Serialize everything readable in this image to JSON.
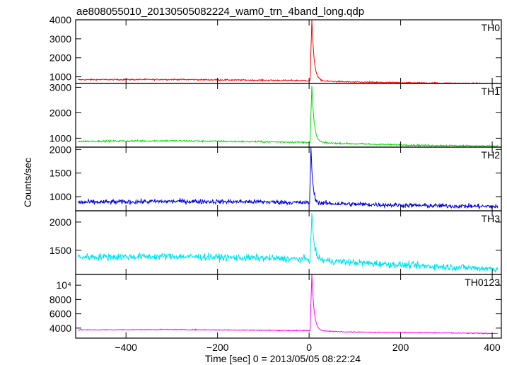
{
  "chart_data": {
    "type": "line",
    "title": "ae808055010_20130505082224_wam0_trn_4band_long.qdp",
    "xlabel": "Time [sec] 0 = 2013/05/05 08:22:24",
    "ylabel": "Counts/sec",
    "xlim": [
      -510,
      420
    ],
    "xticks": [
      -400,
      -200,
      0,
      200,
      400
    ],
    "xtick_labels": [
      "−400",
      "−200",
      "0",
      "200",
      "400"
    ],
    "grid": false,
    "panels": [
      {
        "name": "TH0",
        "color": "#ff0000",
        "ylim": [
          650,
          4000
        ],
        "yticks": [
          1000,
          2000,
          3000,
          4000
        ],
        "ytick_labels": [
          "1000",
          "2000",
          "3000",
          "4000"
        ],
        "baseline": [
          [
            -500,
            850
          ],
          [
            -300,
            860
          ],
          [
            -100,
            820
          ],
          [
            -5,
            800
          ],
          [
            100,
            720
          ],
          [
            250,
            680
          ],
          [
            410,
            640
          ]
        ],
        "noise": 25,
        "burst": {
          "t0": 3,
          "t_peak": 6,
          "peak": 4000,
          "decay": 5
        }
      },
      {
        "name": "TH1",
        "color": "#00dd00",
        "ylim": [
          650,
          3150
        ],
        "yticks": [
          1000,
          2000,
          3000
        ],
        "ytick_labels": [
          "1000",
          "2000",
          "3000"
        ],
        "baseline": [
          [
            -500,
            880
          ],
          [
            -300,
            900
          ],
          [
            -100,
            860
          ],
          [
            -5,
            840
          ],
          [
            100,
            780
          ],
          [
            250,
            720
          ],
          [
            410,
            690
          ]
        ],
        "noise": 22,
        "burst": {
          "t0": 3,
          "t_peak": 6,
          "peak": 3050,
          "decay": 5
        }
      },
      {
        "name": "TH2",
        "color": "#0000dd",
        "ylim": [
          700,
          2050
        ],
        "yticks": [
          1000,
          1500,
          2000
        ],
        "ytick_labels": [
          "1000",
          "1500",
          "2000"
        ],
        "baseline": [
          [
            -500,
            880
          ],
          [
            -300,
            900
          ],
          [
            -100,
            890
          ],
          [
            -5,
            870
          ],
          [
            100,
            840
          ],
          [
            250,
            810
          ],
          [
            410,
            790
          ]
        ],
        "noise": 35,
        "burst": {
          "t0": 2,
          "t_peak": 4,
          "peak": 2050,
          "decay": 4
        }
      },
      {
        "name": "TH3",
        "color": "#00e5ee",
        "ylim": [
          1070,
          2200
        ],
        "yticks": [
          1500,
          2000
        ],
        "ytick_labels": [
          "1500",
          "2000"
        ],
        "baseline": [
          [
            -500,
            1380
          ],
          [
            -300,
            1390
          ],
          [
            -100,
            1360
          ],
          [
            -5,
            1340
          ],
          [
            100,
            1280
          ],
          [
            250,
            1220
          ],
          [
            410,
            1170
          ]
        ],
        "noise": 45,
        "burst": {
          "t0": 3,
          "t_peak": 6,
          "peak": 2150,
          "decay": 5
        }
      },
      {
        "name": "TH0123",
        "color": "#ff00ff",
        "ylim": [
          2600,
          11500
        ],
        "yticks": [
          4000,
          6000,
          8000,
          10000
        ],
        "ytick_labels": [
          "4000",
          "6000",
          "8000",
          "10⁴"
        ],
        "baseline": [
          [
            -500,
            3750
          ],
          [
            -300,
            3800
          ],
          [
            -100,
            3700
          ],
          [
            -5,
            3650
          ],
          [
            100,
            3450
          ],
          [
            250,
            3350
          ],
          [
            410,
            3250
          ]
        ],
        "noise": 45,
        "burst": {
          "t0": 3,
          "t_peak": 6,
          "peak": 11500,
          "decay": 5
        }
      }
    ]
  }
}
